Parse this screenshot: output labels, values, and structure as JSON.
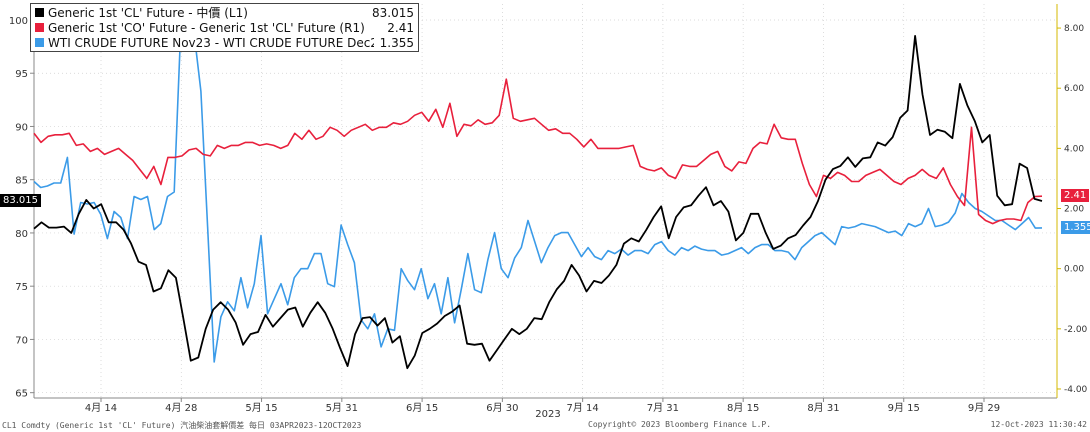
{
  "colors": {
    "black": "#000000",
    "red": "#e8203c",
    "blue": "#3b9be8",
    "axis": "#888888",
    "grid": "#cccccc"
  },
  "legend": [
    {
      "name": "Generic 1st 'CL' Future - 中價 (L1)",
      "value": "83.015",
      "color": "#000000"
    },
    {
      "name": "Generic 1st 'CO' Future - Generic 1st 'CL' Future (R1)",
      "value": "2.41",
      "color": "#e8203c"
    },
    {
      "name": "WTI CRUDE FUTURE Nov23 - WTI CRUDE FUTURE Dec23 (R1)",
      "value": "1.355",
      "color": "#3b9be8"
    }
  ],
  "flags": {
    "left": "83.015",
    "red": "2.41",
    "blue": "1.355"
  },
  "footer": {
    "left": "CL1 Comdty (Generic 1st 'CL' Future) 汽油柴油套解價差  每日 03APR2023-12OCT2023",
    "mid": "Copyright© 2023 Bloomberg Finance L.P.",
    "right": "12-Oct-2023  11:30:42"
  },
  "chart_data": {
    "type": "line",
    "xlabel": "2023",
    "x_ticks": [
      "4月 14",
      "4月 28",
      "5月 15",
      "5月 31",
      "6月 15",
      "6月 30",
      "7月 14",
      "7月 31",
      "8月 15",
      "8月 31",
      "9月 15",
      "9月 29"
    ],
    "left_axis": {
      "ylim": [
        64.5,
        101.5
      ],
      "ticks": [
        65,
        70,
        75,
        80,
        85,
        90,
        95,
        100
      ]
    },
    "right_axis": {
      "ylim": [
        -4.3,
        8.8
      ],
      "ticks": [
        "-4.00",
        "-2.00",
        "0.00",
        "2.00",
        "4.00",
        "6.00",
        "8.00"
      ]
    },
    "grid": true,
    "legend_position": "top-left",
    "series": [
      {
        "name": "Generic 1st 'CL' Future - 中價 (L1)",
        "axis": "left",
        "color": "#000000",
        "values": [
          80.4,
          81.0,
          80.5,
          80.5,
          80.6,
          80.0,
          81.8,
          83.1,
          82.3,
          82.7,
          81.0,
          81.0,
          80.3,
          79.0,
          77.3,
          77.0,
          74.5,
          74.8,
          76.5,
          75.8,
          72.0,
          68.0,
          68.3,
          71.0,
          72.8,
          73.5,
          72.8,
          71.6,
          69.5,
          70.5,
          70.7,
          72.3,
          71.2,
          72.0,
          72.8,
          73.0,
          71.2,
          72.5,
          73.5,
          72.5,
          71.0,
          69.2,
          67.5,
          70.5,
          72.0,
          72.1,
          71.3,
          72.0,
          69.7,
          70.3,
          67.3,
          68.5,
          70.6,
          71.0,
          71.5,
          72.2,
          72.6,
          73.2,
          69.6,
          69.5,
          69.6,
          68.0,
          69.0,
          70.0,
          71.0,
          70.5,
          71.0,
          72.0,
          71.9,
          73.5,
          74.7,
          75.5,
          77.0,
          76.0,
          74.5,
          75.5,
          75.3,
          76.0,
          77.0,
          79.0,
          79.5,
          79.2,
          80.3,
          81.5,
          82.5,
          79.5,
          81.5,
          82.4,
          82.6,
          83.5,
          84.3,
          82.6,
          83.0,
          82.0,
          79.3,
          80.0,
          81.8,
          81.8,
          80.0,
          78.5,
          78.8,
          79.5,
          79.8,
          80.7,
          81.5,
          83.0,
          85.0,
          86.0,
          86.3,
          87.1,
          86.2,
          87.0,
          87.1,
          88.5,
          88.2,
          89.0,
          90.8,
          91.5,
          98.5,
          93.0,
          89.2,
          89.7,
          89.5,
          88.9,
          94.0,
          92.0,
          90.5,
          88.5,
          89.2,
          83.5,
          82.6,
          82.7,
          86.5,
          86.1,
          83.2,
          83.0
        ]
      },
      {
        "name": "Generic 1st 'CO' Future - Generic 1st 'CL' Future (R1)",
        "axis": "right",
        "color": "#e8203c",
        "values": [
          4.5,
          4.2,
          4.4,
          4.45,
          4.45,
          4.5,
          4.1,
          4.15,
          3.9,
          4.0,
          3.8,
          3.9,
          4.0,
          3.8,
          3.6,
          3.3,
          3.0,
          3.4,
          2.8,
          3.7,
          3.7,
          3.75,
          3.95,
          4.0,
          3.8,
          3.75,
          4.1,
          4.0,
          4.1,
          4.1,
          4.2,
          4.2,
          4.1,
          4.15,
          4.1,
          4.0,
          4.1,
          4.5,
          4.3,
          4.6,
          4.3,
          4.4,
          4.7,
          4.6,
          4.4,
          4.6,
          4.7,
          4.8,
          4.6,
          4.7,
          4.7,
          4.85,
          4.8,
          4.9,
          5.1,
          5.2,
          4.9,
          5.3,
          4.7,
          5.5,
          4.4,
          4.8,
          4.75,
          4.95,
          4.8,
          4.85,
          5.1,
          6.3,
          5.0,
          4.9,
          4.95,
          5.0,
          4.8,
          4.6,
          4.65,
          4.5,
          4.5,
          4.3,
          4.05,
          4.3,
          4.0,
          4.0,
          4.0,
          4.0,
          4.05,
          4.1,
          3.4,
          3.3,
          3.25,
          3.35,
          3.1,
          3.0,
          3.45,
          3.4,
          3.4,
          3.6,
          3.8,
          3.9,
          3.4,
          3.25,
          3.55,
          3.5,
          4.0,
          4.2,
          4.15,
          4.8,
          4.35,
          4.3,
          4.3,
          3.5,
          2.8,
          2.4,
          3.1,
          3.0,
          3.2,
          3.1,
          2.9,
          2.9,
          3.1,
          3.2,
          3.3,
          3.1,
          2.9,
          2.8,
          3.0,
          3.1,
          3.3,
          3.1,
          3.0,
          3.35,
          2.8,
          2.4,
          2.1,
          4.7,
          1.8,
          1.6,
          1.5,
          1.6,
          1.65,
          1.65,
          1.6,
          2.2,
          2.4,
          2.41
        ]
      },
      {
        "name": "WTI CRUDE FUTURE Nov23 - WTI CRUDE FUTURE Dec23 (R1)",
        "axis": "right",
        "color": "#3b9be8",
        "values": [
          2.9,
          2.7,
          2.75,
          2.85,
          2.85,
          3.7,
          1.15,
          2.2,
          2.15,
          2.2,
          1.8,
          1.0,
          1.9,
          1.7,
          1.0,
          2.4,
          2.3,
          2.4,
          1.3,
          1.5,
          2.4,
          2.55,
          8.1,
          8.3,
          7.8,
          5.9,
          1.4,
          -3.1,
          -1.6,
          -1.1,
          -1.4,
          -0.3,
          -1.3,
          -0.5,
          1.1,
          -1.5,
          -1.0,
          -0.5,
          -1.2,
          -0.3,
          0.0,
          0.0,
          0.5,
          0.5,
          -0.5,
          -0.6,
          1.45,
          0.8,
          0.2,
          -1.7,
          -2.0,
          -1.5,
          -2.6,
          -2.0,
          -2.05,
          0.0,
          -0.4,
          -0.7,
          0.0,
          -1.0,
          -0.5,
          -1.5,
          -0.3,
          -1.8,
          -0.7,
          0.5,
          -0.7,
          -0.8,
          0.3,
          1.2,
          0.0,
          -0.3,
          0.35,
          0.7,
          1.6,
          0.9,
          0.2,
          0.7,
          1.1,
          1.2,
          1.2,
          0.8,
          0.4,
          0.7,
          0.4,
          0.3,
          0.6,
          0.5,
          0.65,
          0.45,
          0.6,
          0.6,
          0.5,
          0.8,
          0.9,
          0.6,
          0.45,
          0.7,
          0.6,
          0.75,
          0.65,
          0.6,
          0.6,
          0.45,
          0.5,
          0.6,
          0.7,
          0.5,
          0.7,
          0.8,
          0.8,
          0.6,
          0.6,
          0.55,
          0.3,
          0.7,
          0.9,
          1.1,
          1.2,
          1.0,
          0.8,
          1.4,
          1.35,
          1.4,
          1.5,
          1.45,
          1.4,
          1.3,
          1.2,
          1.25,
          1.1,
          1.5,
          1.4,
          1.5,
          2.0,
          1.4,
          1.45,
          1.55,
          1.85,
          2.5,
          2.2,
          2.0,
          1.9,
          1.75,
          1.6,
          1.6,
          1.45,
          1.3,
          1.5,
          1.7,
          1.35,
          1.355
        ]
      }
    ]
  }
}
